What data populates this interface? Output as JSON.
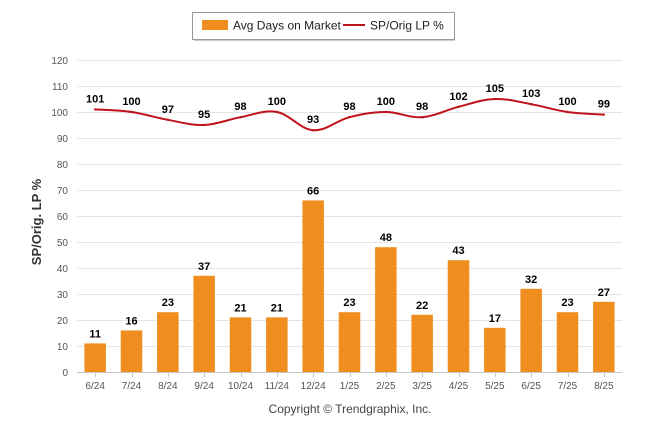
{
  "colors": {
    "bar": "#ef8e1f",
    "line": "#c0121a",
    "grid": "#e4e4e4",
    "axis": "#c8c8c8"
  },
  "legend": {
    "bar_label": "Avg Days on Market",
    "line_label": "SP/Orig LP %"
  },
  "chart_data": {
    "type": "bar",
    "categories": [
      "6/24",
      "7/24",
      "8/24",
      "9/24",
      "10/24",
      "11/24",
      "12/24",
      "1/25",
      "2/25",
      "3/25",
      "4/25",
      "5/25",
      "6/25",
      "7/25",
      "8/25"
    ],
    "series": [
      {
        "name": "Avg Days on Market",
        "type": "bar",
        "values": [
          11,
          16,
          23,
          37,
          21,
          21,
          66,
          23,
          48,
          22,
          43,
          17,
          32,
          23,
          27
        ]
      },
      {
        "name": "SP/Orig LP %",
        "type": "line",
        "values": [
          101,
          100,
          97,
          95,
          98,
          100,
          93,
          98,
          100,
          98,
          102,
          105,
          103,
          100,
          99
        ]
      }
    ],
    "ylabel": "SP/Orig. LP %",
    "ylim": [
      0,
      120
    ],
    "yticks": [
      0,
      10,
      20,
      30,
      40,
      50,
      60,
      70,
      80,
      90,
      100,
      110,
      120
    ],
    "grid": true,
    "legend_position": "top-center"
  },
  "footer": {
    "credit": "Copyright © Trendgraphix, Inc."
  }
}
